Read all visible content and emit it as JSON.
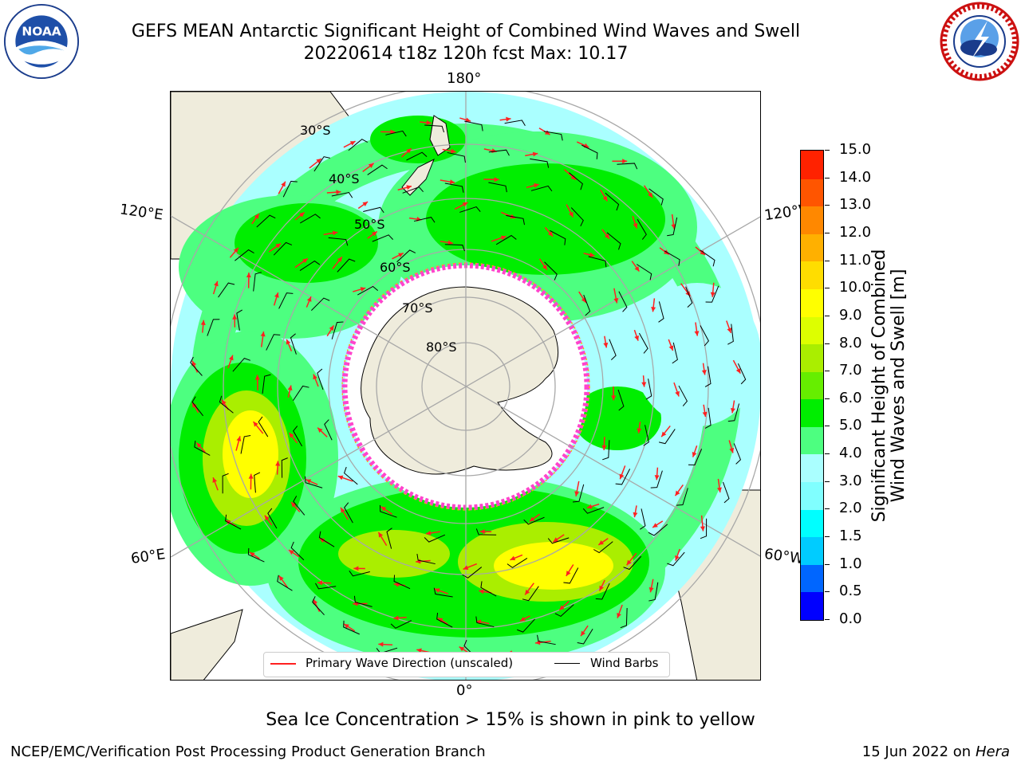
{
  "header": {
    "title_line1": "GEFS MEAN Antarctic Significant Height of Combined Wind Waves and Swell",
    "title_line2": "20220614 t18z 120h fcst   Max: 10.17"
  },
  "logos": {
    "left": "noaa-logo",
    "right": "national-weather-service-logo"
  },
  "map": {
    "projection": "south-polar-stereographic",
    "longitude_labels": {
      "top": "180°",
      "bottom": "0°",
      "left_upper": "120°E",
      "right_upper": "120°W",
      "left_lower": "60°E",
      "right_lower": "60°W"
    },
    "latitude_labels": [
      "30°S",
      "40°S",
      "50°S",
      "60°S",
      "70°S",
      "80°S"
    ],
    "max_value": 10.17
  },
  "legend": {
    "wave_label": "Primary Wave Direction (unscaled)",
    "wind_label": "Wind Barbs",
    "wave_color": "#ff2020",
    "wind_color": "#000000"
  },
  "colorbar": {
    "label_line1": "Significant Height of Combined",
    "label_line2": "Wind Waves and Swell [m]",
    "ticks": [
      "0.0",
      "0.5",
      "1.0",
      "1.5",
      "2.0",
      "3.0",
      "4.0",
      "5.0",
      "6.0",
      "7.0",
      "8.0",
      "9.0",
      "10.0",
      "11.0",
      "12.0",
      "13.0",
      "14.0",
      "15.0"
    ],
    "colors": [
      "#0000ff",
      "#0066ff",
      "#00ccff",
      "#00ffff",
      "#80ffff",
      "#aaffff",
      "#4dff80",
      "#00ee00",
      "#66ee00",
      "#aaee00",
      "#ddff00",
      "#ffff00",
      "#ffdd00",
      "#ffb000",
      "#ff8800",
      "#ff5500",
      "#ff2200",
      "#ff0000"
    ]
  },
  "footer": {
    "footnote": "Sea Ice Concentration > 15% is shown in pink to yellow",
    "credit": "NCEP/EMC/Verification Post Processing Product Generation Branch",
    "date": "15 Jun 2022 on",
    "host": "Hera"
  }
}
